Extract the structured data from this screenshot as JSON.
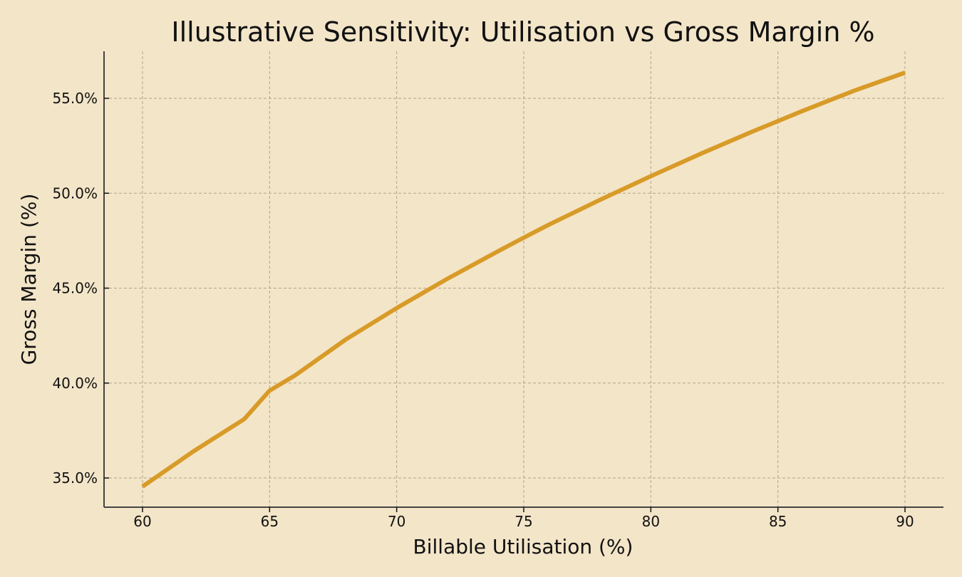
{
  "chart_data": {
    "type": "line",
    "title": "Illustrative Sensitivity: Utilisation vs Gross Margin %",
    "xlabel": "Billable Utilisation (%)",
    "ylabel": "Gross Margin (%)",
    "x_ticks": [
      "60",
      "65",
      "70",
      "75",
      "80",
      "85",
      "90"
    ],
    "y_ticks": [
      "35.0%",
      "40.0%",
      "45.0%",
      "50.0%",
      "55.0%"
    ],
    "xlim": [
      58.5,
      91.5
    ],
    "ylim": [
      34.0,
      57.5
    ],
    "grid": true,
    "series": [
      {
        "name": "Gross Margin",
        "color": "#d89b28",
        "x": [
          60,
          62,
          64,
          65,
          66,
          68,
          70,
          72,
          74,
          75,
          76,
          78,
          80,
          82,
          84,
          85,
          86,
          88,
          90
        ],
        "values": [
          34.55,
          36.4,
          38.1,
          39.6,
          40.4,
          42.3,
          43.95,
          45.5,
          46.95,
          47.66,
          48.35,
          49.65,
          50.9,
          52.1,
          53.25,
          53.8,
          54.35,
          55.4,
          56.35
        ]
      }
    ]
  },
  "colors": {
    "background": "#f3e5c8",
    "line": "#d89b28",
    "grid": "#b0a38b",
    "axis": "#444444"
  }
}
